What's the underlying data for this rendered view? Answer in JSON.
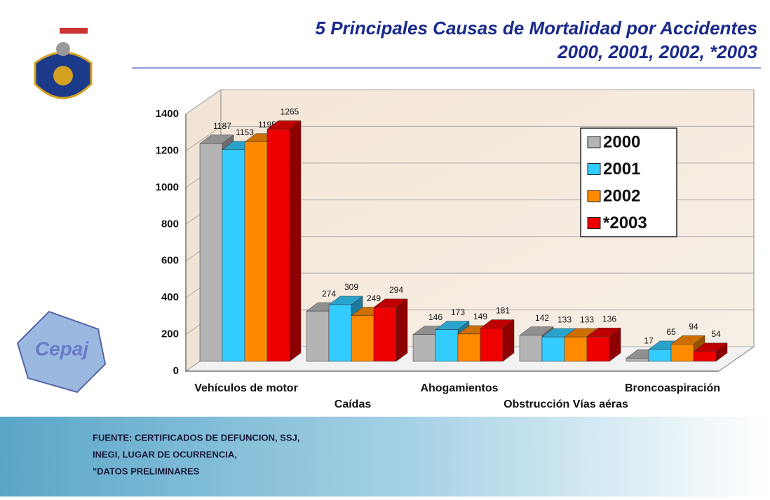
{
  "chart_data": {
    "type": "bar3d",
    "title": "5 Principales Causas de Mortalidad por Accidentes",
    "subtitle": "2000, 2001, 2002, *2003",
    "categories": [
      "Vehículos de motor",
      "Caídas",
      "Ahogamientos",
      "Obstrucción Vías aéras",
      "Broncoaspiración"
    ],
    "series": [
      {
        "name": "2000",
        "color": "#b4b4b4",
        "values": [
          1187,
          274,
          146,
          142,
          17
        ]
      },
      {
        "name": "2001",
        "color": "#33ccff",
        "values": [
          1153,
          309,
          173,
          133,
          65
        ]
      },
      {
        "name": "2002",
        "color": "#ff8a00",
        "values": [
          1195,
          249,
          149,
          133,
          94
        ]
      },
      {
        "name": "*2003",
        "color": "#ee0000",
        "values": [
          1265,
          294,
          181,
          136,
          54
        ]
      }
    ],
    "ylim": [
      0,
      1400
    ],
    "yticks": [
      0,
      200,
      400,
      600,
      800,
      1000,
      1200,
      1400
    ],
    "grid": true,
    "legend": "upper right"
  },
  "footer": [
    "FUENTE: CERTIFICADOS DE DEFUNCION, SSJ,",
    "INEGI, LUGAR DE OCURRENCIA,",
    "\"DATOS PRELIMINARES"
  ],
  "logo_text": "Cepaj"
}
